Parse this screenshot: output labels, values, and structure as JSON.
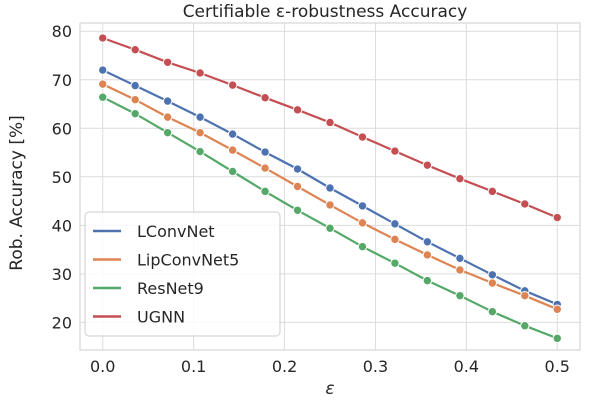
{
  "chart_data": {
    "type": "line",
    "title": "Certifiable ε-robustness Accuracy",
    "xlabel": "ε",
    "ylabel": "Rob. Accuracy [%]",
    "xlim": [
      -0.025,
      0.525
    ],
    "ylim": [
      14.3,
      81.7
    ],
    "xticks": [
      0.0,
      0.1,
      0.2,
      0.3,
      0.4,
      0.5
    ],
    "xtick_labels": [
      "0.0",
      "0.1",
      "0.2",
      "0.3",
      "0.4",
      "0.5"
    ],
    "yticks": [
      20,
      30,
      40,
      50,
      60,
      70,
      80
    ],
    "ytick_labels": [
      "20",
      "30",
      "40",
      "50",
      "60",
      "70",
      "80"
    ],
    "grid": true,
    "legend_position": "lower-left",
    "x": [
      0.0,
      0.0357,
      0.0714,
      0.1071,
      0.1429,
      0.1786,
      0.2143,
      0.25,
      0.2857,
      0.3214,
      0.3571,
      0.3929,
      0.4286,
      0.4643,
      0.5
    ],
    "series": [
      {
        "name": "LConvNet",
        "color": "#4c72b0",
        "values": [
          72.0,
          68.8,
          65.6,
          62.3,
          58.8,
          55.1,
          51.6,
          47.7,
          44.0,
          40.3,
          36.6,
          33.2,
          29.8,
          26.5,
          23.7
        ]
      },
      {
        "name": "LipConvNet5",
        "color": "#dd8452",
        "values": [
          69.1,
          65.9,
          62.3,
          59.1,
          55.5,
          51.8,
          48.0,
          44.2,
          40.5,
          37.1,
          33.9,
          30.8,
          28.1,
          25.5,
          22.7
        ]
      },
      {
        "name": "ResNet9",
        "color": "#55a868",
        "values": [
          66.4,
          63.0,
          59.1,
          55.2,
          51.1,
          47.0,
          43.1,
          39.4,
          35.6,
          32.2,
          28.6,
          25.5,
          22.2,
          19.3,
          16.7
        ]
      },
      {
        "name": "UGNN",
        "color": "#c44e52",
        "values": [
          78.6,
          76.2,
          73.6,
          71.4,
          68.9,
          66.3,
          63.8,
          61.2,
          58.2,
          55.3,
          52.4,
          49.6,
          47.0,
          44.4,
          41.6
        ]
      }
    ]
  }
}
